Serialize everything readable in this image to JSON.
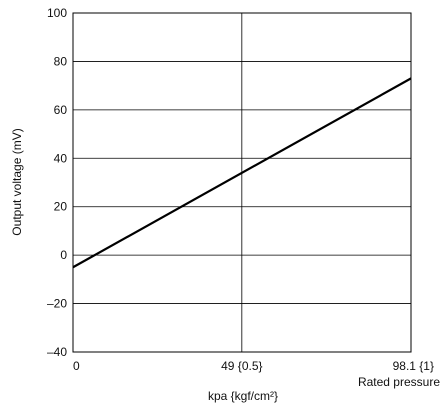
{
  "chart_data": {
    "type": "line",
    "xlabel": "kpa {kgf/cm²}",
    "ylabel": "Output voltage (mV)",
    "xlim": [
      0,
      98.1
    ],
    "ylim": [
      -40,
      100
    ],
    "grid": true,
    "x_ticks": [
      {
        "value": 0,
        "label": "0"
      },
      {
        "value": 49,
        "label": "49 {0.5}"
      },
      {
        "value": 98.1,
        "label": "98.1 {1}"
      }
    ],
    "x_tick_sublabel": "Rated pressure",
    "y_ticks": [
      {
        "value": 100,
        "label": "100"
      },
      {
        "value": 80,
        "label": "80"
      },
      {
        "value": 60,
        "label": "60"
      },
      {
        "value": 40,
        "label": "40"
      },
      {
        "value": 20,
        "label": "20"
      },
      {
        "value": 0,
        "label": "0"
      },
      {
        "value": -20,
        "label": "–20"
      },
      {
        "value": -40,
        "label": "–40"
      }
    ],
    "series": [
      {
        "x": [
          0,
          98.1
        ],
        "y": [
          -5,
          73
        ]
      }
    ],
    "colors": {
      "line": "#000000",
      "grid": "#000000",
      "frame": "#000000"
    }
  }
}
